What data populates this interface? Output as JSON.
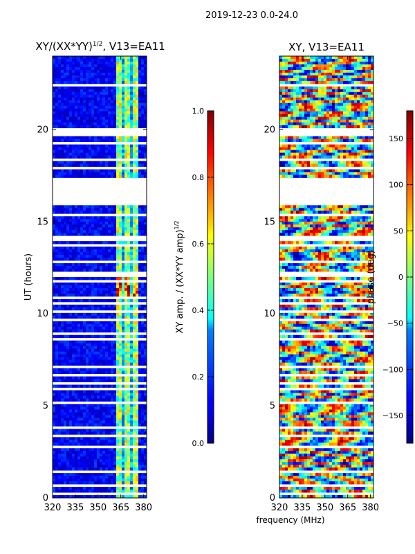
{
  "figure": {
    "suptitle": "2019-12-23 0.0-24.0",
    "shared_xlabel": "frequency (MHz)"
  },
  "chart_data": [
    {
      "type": "heatmap",
      "title_main": "XY/(XX*YY)",
      "title_exp": "1/2",
      "title_suffix": ", V13=EA11",
      "xlabel": "",
      "ylabel": "UT (hours)",
      "xlim": [
        320,
        382
      ],
      "ylim": [
        0,
        24
      ],
      "xticks": [
        320,
        335,
        350,
        365,
        380
      ],
      "yticks": [
        0,
        5,
        10,
        15,
        20
      ],
      "colorbar": {
        "label_main": "XY amp. / (XX*YY amp)",
        "label_exp": "1/2",
        "range": [
          0.0,
          1.0
        ],
        "ticks": [
          "0.0",
          "0.2",
          "0.4",
          "0.6",
          "0.8",
          "1.0"
        ],
        "tick_values": [
          0.0,
          0.2,
          0.4,
          0.6,
          0.8,
          1.0
        ],
        "colormap": "jet"
      },
      "bright_band_mhz": [
        362,
        377
      ],
      "flagged_ut_ranges": [
        [
          0.2,
          0.3
        ],
        [
          0.6,
          0.7
        ],
        [
          1.4,
          1.5
        ],
        [
          1.9,
          2.0
        ],
        [
          2.7,
          2.8
        ],
        [
          3.3,
          3.4
        ],
        [
          3.75,
          3.85
        ],
        [
          4.0,
          4.1
        ],
        [
          4.6,
          4.7
        ],
        [
          5.1,
          5.2
        ],
        [
          5.9,
          6.0
        ],
        [
          6.2,
          6.3
        ],
        [
          6.6,
          6.7
        ],
        [
          7.1,
          7.2
        ],
        [
          7.6,
          7.7
        ],
        [
          7.9,
          8.0
        ],
        [
          8.6,
          8.7
        ],
        [
          8.9,
          9.0
        ],
        [
          9.6,
          9.7
        ],
        [
          10.1,
          10.2
        ],
        [
          10.5,
          10.6
        ],
        [
          10.8,
          10.9
        ],
        [
          11.7,
          11.8
        ],
        [
          11.95,
          12.1
        ],
        [
          12.2,
          12.3
        ],
        [
          12.8,
          12.9
        ],
        [
          13.3,
          13.4
        ],
        [
          13.65,
          13.75
        ],
        [
          13.9,
          14.3
        ],
        [
          15.3,
          15.4
        ],
        [
          15.9,
          16.0
        ],
        [
          16.1,
          17.2
        ],
        [
          17.3,
          17.4
        ],
        [
          17.9,
          18.0
        ],
        [
          18.3,
          18.4
        ],
        [
          18.7,
          18.8
        ],
        [
          19.2,
          19.3
        ],
        [
          19.7,
          20.1
        ],
        [
          21.1,
          21.2
        ],
        [
          22.0,
          22.1
        ],
        [
          22.4,
          22.5
        ],
        [
          22.6,
          22.7
        ]
      ]
    },
    {
      "type": "heatmap",
      "title_main": "XY, V13=EA11",
      "xlabel": "frequency (MHz)",
      "ylabel": "",
      "xlim": [
        320,
        382
      ],
      "ylim": [
        0,
        24
      ],
      "xticks": [
        320,
        335,
        350,
        365,
        380
      ],
      "yticks": [
        0,
        5,
        10,
        15,
        20
      ],
      "colorbar": {
        "label_main": "phase (deg)",
        "range": [
          -180,
          180
        ],
        "ticks": [
          "−150",
          "−100",
          "−50",
          "0",
          "50",
          "100",
          "150"
        ],
        "tick_values": [
          -150,
          -100,
          -50,
          0,
          50,
          100,
          150
        ],
        "colormap": "jet"
      },
      "flagged_ut_ranges": [
        [
          0.2,
          0.3
        ],
        [
          0.6,
          0.7
        ],
        [
          1.4,
          1.5
        ],
        [
          1.9,
          2.0
        ],
        [
          2.7,
          2.8
        ],
        [
          3.3,
          3.4
        ],
        [
          3.75,
          3.85
        ],
        [
          4.0,
          4.1
        ],
        [
          4.6,
          4.7
        ],
        [
          5.1,
          5.2
        ],
        [
          5.9,
          6.0
        ],
        [
          6.2,
          6.3
        ],
        [
          6.6,
          6.7
        ],
        [
          7.1,
          7.2
        ],
        [
          7.6,
          7.7
        ],
        [
          7.9,
          8.0
        ],
        [
          8.6,
          8.7
        ],
        [
          8.9,
          9.0
        ],
        [
          9.6,
          9.7
        ],
        [
          10.1,
          10.2
        ],
        [
          10.5,
          10.6
        ],
        [
          10.8,
          10.9
        ],
        [
          11.7,
          11.8
        ],
        [
          11.95,
          12.1
        ],
        [
          12.2,
          12.3
        ],
        [
          12.8,
          12.9
        ],
        [
          13.3,
          13.4
        ],
        [
          13.65,
          13.75
        ],
        [
          13.9,
          14.3
        ],
        [
          15.3,
          15.4
        ],
        [
          15.9,
          16.0
        ],
        [
          16.1,
          17.2
        ],
        [
          17.3,
          17.4
        ],
        [
          17.9,
          18.0
        ],
        [
          18.3,
          18.4
        ],
        [
          18.7,
          18.8
        ],
        [
          19.2,
          19.3
        ],
        [
          19.7,
          20.1
        ],
        [
          21.1,
          21.2
        ],
        [
          22.0,
          22.1
        ],
        [
          22.4,
          22.5
        ],
        [
          22.6,
          22.7
        ]
      ]
    }
  ]
}
